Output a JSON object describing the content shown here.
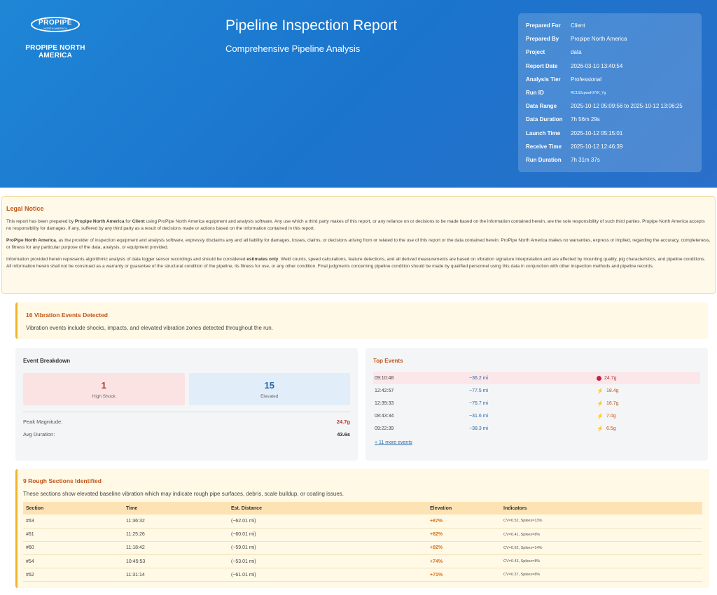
{
  "header": {
    "logo_text": "PROPIPE",
    "logo_sub": "NORTH AMERICA",
    "company_name": "PROPIPE NORTH AMERICA",
    "title": "Pipeline Inspection Report",
    "subtitle": "Comprehensive Pipeline Analysis",
    "meta": [
      {
        "key": "Prepared For",
        "value": "Client"
      },
      {
        "key": "Prepared By",
        "value": "Propipe North America"
      },
      {
        "key": "Project",
        "value": "data"
      },
      {
        "key": "Report Date",
        "value": "2026-03-10 13:40:54"
      },
      {
        "key": "Analysis Tier",
        "value": "Professional"
      },
      {
        "key": "Run ID",
        "value": "RC1S2zpwaHXYK_Yg"
      },
      {
        "key": "Data Range",
        "value": "2025-10-12 05:09:56 to 2025-10-12 13:06:25"
      },
      {
        "key": "Data Duration",
        "value": "7h 56m 29s"
      },
      {
        "key": "Launch Time",
        "value": "2025-10-12 05:15:01"
      },
      {
        "key": "Receive Time",
        "value": "2025-10-12 12:46:39"
      },
      {
        "key": "Run Duration",
        "value": "7h 31m 37s"
      }
    ]
  },
  "legal": {
    "title": "Legal Notice",
    "p1_a": "This report has been prepared by ",
    "p1_b": "Propipe North America",
    "p1_c": " for ",
    "p1_d": "Client",
    "p1_e": " using ProPipe North America equipment and analysis software. Any use which a third party makes of this report, or any reliance on or decisions to be made based on the information contained herein, are the sole responsibility of such third parties. Propipe North America accepts no responsibility for damages, if any, suffered by any third party as a result of decisions made or actions based on the information contained in this report.",
    "p2_a": "ProPipe North America",
    "p2_b": ", as the provider of inspection equipment and analysis software, expressly disclaims any and all liability for damages, losses, claims, or decisions arising from or related to the use of this report or the data contained herein. ProPipe North America makes no warranties, express or implied, regarding the accuracy, completeness, or fitness for any particular purpose of the data, analysis, or equipment provided.",
    "p3_a": "Information provided herein represents algorithmic analysis of data logger sensor recordings and should be considered ",
    "p3_b": "estimates only",
    "p3_c": ". Weld counts, speed calculations, feature detections, and all derived measurements are based on vibration signature interpretation and are affected by mounting quality, pig characteristics, and pipeline conditions. All information herein shall not be construed as a warranty or guarantee of the structural condition of the pipeline, its fitness for use, or any other condition. Final judgments concerning pipeline condition should be made by qualified personnel using this data in conjunction with other inspection methods and pipeline records."
  },
  "vibration": {
    "title": "16 Vibration Events Detected",
    "desc": "Vibration events include shocks, impacts, and elevated vibration zones detected throughout the run."
  },
  "breakdown": {
    "title": "Event Breakdown",
    "high_shock_count": "1",
    "high_shock_label": "High Shock",
    "elevated_count": "15",
    "elevated_label": "Elevated",
    "peak_label": "Peak Magnitude:",
    "peak_value": "24.7g",
    "avg_label": "Avg Duration:",
    "avg_value": "43.6s"
  },
  "top_events": {
    "title": "Top Events",
    "events": [
      {
        "time": "09:10:48",
        "distance": "~36.2 mi",
        "magnitude": "24.7g",
        "icon": "dot-icon"
      },
      {
        "time": "12:42:57",
        "distance": "~77.5 mi",
        "magnitude": "18.4g",
        "icon": "bolt-icon"
      },
      {
        "time": "12:39:33",
        "distance": "~76.7 mi",
        "magnitude": "16.7g",
        "icon": "bolt-icon"
      },
      {
        "time": "08:43:34",
        "distance": "~31.6 mi",
        "magnitude": "7.0g",
        "icon": "bolt-icon"
      },
      {
        "time": "09:22:39",
        "distance": "~38.3 mi",
        "magnitude": "6.5g",
        "icon": "bolt-icon"
      }
    ],
    "more_link": "+ 11 more events"
  },
  "rough": {
    "title": "9 Rough Sections Identified",
    "desc": "These sections show elevated baseline vibration which may indicate rough pipe surfaces, debris, scale buildup, or coating issues.",
    "headers": [
      "Section",
      "Time",
      "Est. Distance",
      "Elevation",
      "Indicators"
    ],
    "rows": [
      [
        "#63",
        "11:36:32",
        "(~62.01 mi)",
        "+87%",
        "CV=0.52, Spikes=13%"
      ],
      [
        "#61",
        "11:25:26",
        "(~60.01 mi)",
        "+82%",
        "CV=0.41, Spikes=8%"
      ],
      [
        "#60",
        "11:18:42",
        "(~59.01 mi)",
        "+82%",
        "CV=0.62, Spikes=14%"
      ],
      [
        "#54",
        "10:45:53",
        "(~53.01 mi)",
        "+74%",
        "CV=0.43, Spikes=8%"
      ],
      [
        "#62",
        "11:31:14",
        "(~61.01 mi)",
        "+71%",
        "CV=0.37, Spikes=8%"
      ]
    ]
  }
}
